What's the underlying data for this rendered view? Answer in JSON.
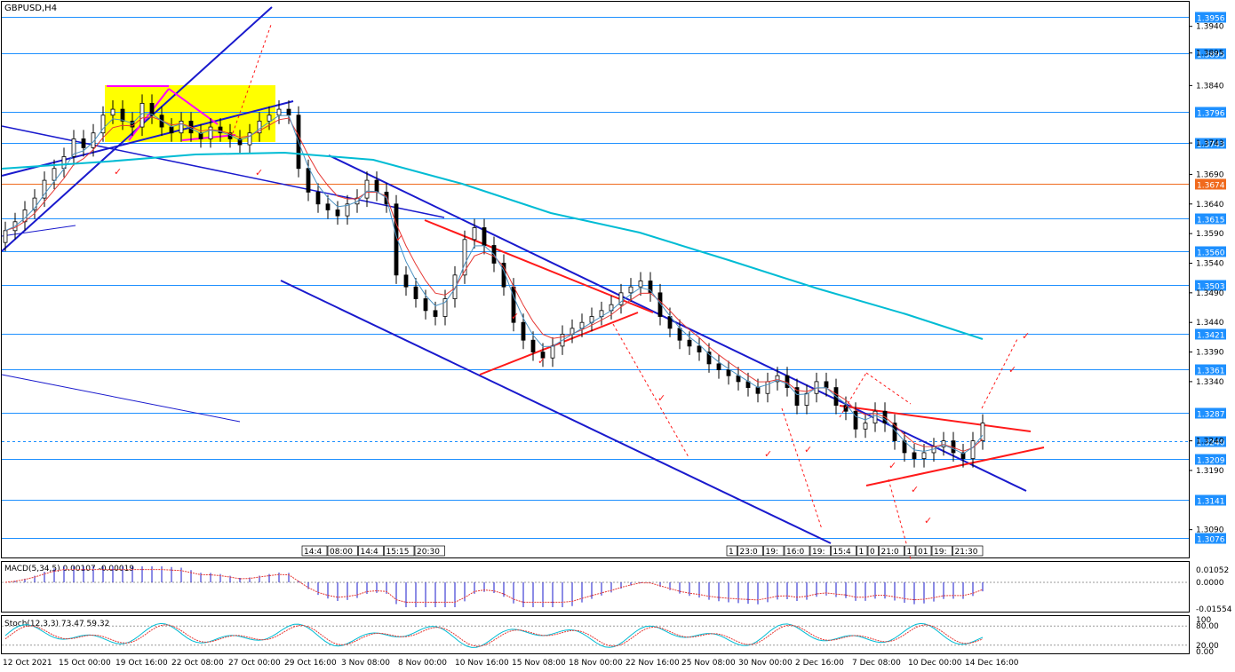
{
  "symbol_label": "GBPUSD,H4",
  "macd_label": "MACD(5,34,5) 0.00107 -0.00019",
  "stoch_label": "Stoch(12,3,3) 73.47 59.32",
  "colors": {
    "grid": "#1e90ff",
    "candle": "#000000",
    "ema_red": "#e53935",
    "ema_blue": "#00bcd4",
    "channel": "#1a1acd",
    "trend_red": "#ff1a1a",
    "highlight": "#ffff00",
    "magenta": "#ff00ff"
  },
  "chart_data": [
    {
      "type": "candlestick",
      "title": "GBPUSD,H4",
      "y_tick_labels": [
        "1.3940",
        "1.3895",
        "1.3840",
        "1.3743",
        "1.3690",
        "1.3640",
        "1.3590",
        "1.3540",
        "1.3490",
        "1.3440",
        "1.3390",
        "1.3340",
        "1.3240",
        "1.3190",
        "1.3090"
      ],
      "price_levels": [
        {
          "value": "1.3956",
          "color": "#1e90ff"
        },
        {
          "value": "1.3895",
          "color": "#1e90ff"
        },
        {
          "value": "1.3796",
          "color": "#1e90ff"
        },
        {
          "value": "1.3743",
          "color": "#1e90ff"
        },
        {
          "value": "1.3674",
          "color": "#f06a1d"
        },
        {
          "value": "1.3615",
          "color": "#1e90ff"
        },
        {
          "value": "1.3560",
          "color": "#1e90ff"
        },
        {
          "value": "1.3503",
          "color": "#1e90ff"
        },
        {
          "value": "1.3421",
          "color": "#1e90ff"
        },
        {
          "value": "1.3361",
          "color": "#1e90ff"
        },
        {
          "value": "1.3287",
          "color": "#1e90ff"
        },
        {
          "value": "1.3240",
          "color": "#1e90ff"
        },
        {
          "value": "1.3209",
          "color": "#1e90ff"
        },
        {
          "value": "1.3141",
          "color": "#1e90ff"
        },
        {
          "value": "1.3076",
          "color": "#1e90ff"
        }
      ],
      "x_tick_labels": [
        "12 Oct 2021",
        "15 Oct 00:00",
        "19 Oct 16:00",
        "22 Oct 08:00",
        "27 Oct 00:00",
        "29 Oct 16:00",
        "3 Nov 08:00",
        "8 Nov 00:00",
        "10 Nov 16:00",
        "15 Nov 08:00",
        "18 Nov 00:00",
        "22 Nov 16:00",
        "25 Nov 08:00",
        "30 Nov 00:00",
        "2 Dec 16:00",
        "7 Dec 08:00",
        "10 Dec 00:00",
        "14 Dec 16:00"
      ],
      "time_marker_labels_a": [
        "14:4",
        "08:00",
        "14:4",
        "15:15",
        "20:30"
      ],
      "time_marker_labels_b": [
        "1",
        "23:0",
        "19:",
        "16:0",
        "19:",
        "15:4",
        "1",
        "0",
        "21:0",
        "1",
        "01",
        "19:",
        "21:30"
      ],
      "close_values": [
        1.3595,
        1.361,
        1.363,
        1.365,
        1.368,
        1.37,
        1.372,
        1.375,
        1.3735,
        1.376,
        1.379,
        1.38,
        1.378,
        1.377,
        1.381,
        1.379,
        1.377,
        1.376,
        1.378,
        1.376,
        1.375,
        1.377,
        1.376,
        1.375,
        1.374,
        1.376,
        1.378,
        1.379,
        1.38,
        1.379,
        1.37,
        1.366,
        1.364,
        1.363,
        1.362,
        1.364,
        1.365,
        1.368,
        1.366,
        1.364,
        1.352,
        1.35,
        1.348,
        1.346,
        1.345,
        1.348,
        1.352,
        1.358,
        1.36,
        1.357,
        1.354,
        1.35,
        1.344,
        1.341,
        1.339,
        1.338,
        1.34,
        1.342,
        1.343,
        1.344,
        1.345,
        1.346,
        1.347,
        1.349,
        1.35,
        1.351,
        1.349,
        1.345,
        1.343,
        1.341,
        1.34,
        1.339,
        1.337,
        1.336,
        1.335,
        1.334,
        1.333,
        1.332,
        1.334,
        1.335,
        1.333,
        1.33,
        1.332,
        1.334,
        1.333,
        1.33,
        1.329,
        1.326,
        1.327,
        1.329,
        1.327,
        1.324,
        1.322,
        1.321,
        1.322,
        1.323,
        1.324,
        1.322,
        1.321,
        1.324,
        1.327
      ]
    },
    {
      "type": "bar",
      "title": "MACD(5,34,5) 0.00107 -0.00019",
      "y_tick_labels": [
        "0.01052",
        "0.0000",
        "-0.01554"
      ]
    },
    {
      "type": "line",
      "title": "Stoch(12,3,3) 73.47 59.32",
      "y_tick_labels": [
        "100",
        "80.00",
        "20.00",
        "0.00"
      ]
    }
  ]
}
